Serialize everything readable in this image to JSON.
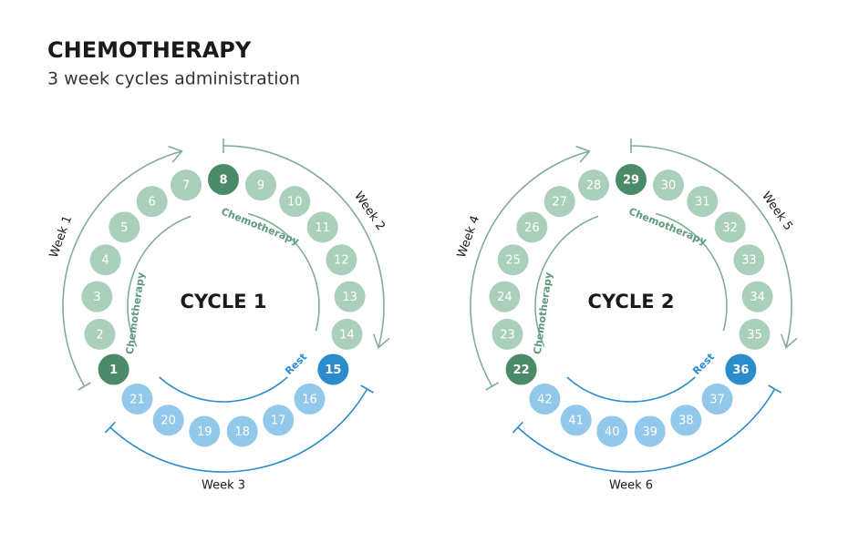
{
  "header": {
    "title": "CHEMOTHERAPY",
    "subtitle": "3 week cycles administration"
  },
  "cycles": [
    {
      "title": "CYCLE 1",
      "days": [
        1,
        2,
        3,
        4,
        5,
        6,
        7,
        8,
        9,
        10,
        11,
        12,
        13,
        14,
        15,
        16,
        17,
        18,
        19,
        20,
        21
      ],
      "phases": [
        "Chemotherapy",
        "Chemotherapy",
        "Rest"
      ],
      "weeks": [
        "Week 1",
        "Week 2",
        "Week 3"
      ]
    },
    {
      "title": "CYCLE 2",
      "days": [
        22,
        23,
        24,
        25,
        26,
        27,
        28,
        29,
        30,
        31,
        32,
        33,
        34,
        35,
        36,
        37,
        38,
        39,
        40,
        41,
        42
      ],
      "phases": [
        "Chemotherapy",
        "Chemotherapy",
        "Rest"
      ],
      "weeks": [
        "Week 4",
        "Week 5",
        "Week 6"
      ]
    }
  ]
}
